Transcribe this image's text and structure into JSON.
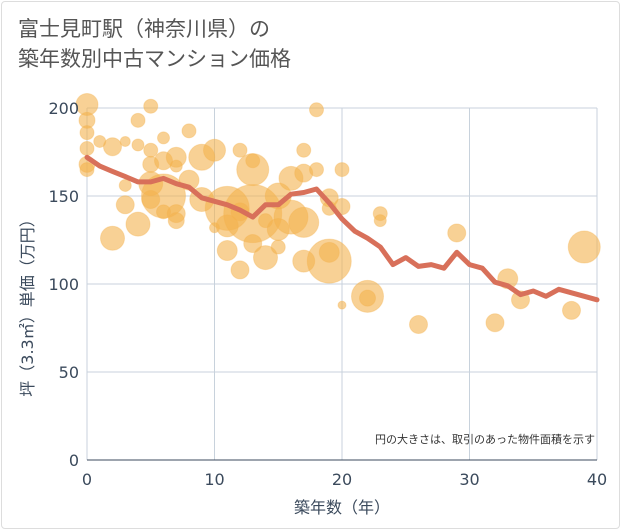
{
  "title": {
    "line1": "富士見町駅（神奈川県）の",
    "line2": "築年数別中古マンション価格"
  },
  "colors": {
    "bubble": "#f3b34e",
    "line": "#d8705a",
    "grid": "#c8d2dc",
    "axis": "#3b4a5c"
  },
  "chart_data": {
    "type": "scatter",
    "title": "富士見町駅（神奈川県）の築年数別中古マンション価格",
    "xlabel": "築年数（年）",
    "ylabel": "坪（3.3㎡）単価（万円）",
    "xlim": [
      0,
      40
    ],
    "ylim": [
      0,
      200
    ],
    "xticks": [
      0,
      10,
      20,
      30,
      40
    ],
    "yticks": [
      0,
      50,
      100,
      150,
      200
    ],
    "grid": true,
    "annotation": "円の大きさは、取引のあった物件面積を示す",
    "series": [
      {
        "type": "bubble",
        "points": [
          {
            "x": 0,
            "y": 202,
            "r": 11
          },
          {
            "x": 0,
            "y": 193,
            "r": 8
          },
          {
            "x": 0,
            "y": 186,
            "r": 7
          },
          {
            "x": 0,
            "y": 177,
            "r": 7
          },
          {
            "x": 0,
            "y": 168,
            "r": 8
          },
          {
            "x": 0,
            "y": 165,
            "r": 7
          },
          {
            "x": 1,
            "y": 181,
            "r": 6
          },
          {
            "x": 2,
            "y": 178,
            "r": 9
          },
          {
            "x": 2,
            "y": 126,
            "r": 12
          },
          {
            "x": 3,
            "y": 181,
            "r": 5
          },
          {
            "x": 3,
            "y": 156,
            "r": 6
          },
          {
            "x": 3,
            "y": 145,
            "r": 9
          },
          {
            "x": 4,
            "y": 193,
            "r": 7
          },
          {
            "x": 4,
            "y": 179,
            "r": 6
          },
          {
            "x": 4,
            "y": 134,
            "r": 12
          },
          {
            "x": 5,
            "y": 201,
            "r": 7
          },
          {
            "x": 5,
            "y": 176,
            "r": 7
          },
          {
            "x": 5,
            "y": 168,
            "r": 8
          },
          {
            "x": 5,
            "y": 157,
            "r": 12
          },
          {
            "x": 5,
            "y": 148,
            "r": 9
          },
          {
            "x": 6,
            "y": 183,
            "r": 6
          },
          {
            "x": 6,
            "y": 170,
            "r": 9
          },
          {
            "x": 6,
            "y": 150,
            "r": 22
          },
          {
            "x": 6,
            "y": 141,
            "r": 7
          },
          {
            "x": 7,
            "y": 172,
            "r": 10
          },
          {
            "x": 7,
            "y": 167,
            "r": 6
          },
          {
            "x": 7,
            "y": 140,
            "r": 9
          },
          {
            "x": 7,
            "y": 136,
            "r": 8
          },
          {
            "x": 8,
            "y": 187,
            "r": 7
          },
          {
            "x": 8,
            "y": 159,
            "r": 10
          },
          {
            "x": 9,
            "y": 172,
            "r": 13
          },
          {
            "x": 9,
            "y": 148,
            "r": 12
          },
          {
            "x": 10,
            "y": 176,
            "r": 11
          },
          {
            "x": 10,
            "y": 132,
            "r": 5
          },
          {
            "x": 11,
            "y": 143,
            "r": 22
          },
          {
            "x": 11,
            "y": 133,
            "r": 11
          },
          {
            "x": 11,
            "y": 119,
            "r": 10
          },
          {
            "x": 12,
            "y": 176,
            "r": 7
          },
          {
            "x": 12,
            "y": 141,
            "r": 9
          },
          {
            "x": 12,
            "y": 108,
            "r": 9
          },
          {
            "x": 13,
            "y": 170,
            "r": 7
          },
          {
            "x": 13,
            "y": 165,
            "r": 16
          },
          {
            "x": 13,
            "y": 140,
            "r": 29
          },
          {
            "x": 13,
            "y": 123,
            "r": 9
          },
          {
            "x": 14,
            "y": 136,
            "r": 7
          },
          {
            "x": 14,
            "y": 115,
            "r": 12
          },
          {
            "x": 15,
            "y": 150,
            "r": 13
          },
          {
            "x": 15,
            "y": 131,
            "r": 11
          },
          {
            "x": 15,
            "y": 121,
            "r": 7
          },
          {
            "x": 16,
            "y": 160,
            "r": 12
          },
          {
            "x": 16,
            "y": 138,
            "r": 17
          },
          {
            "x": 17,
            "y": 176,
            "r": 7
          },
          {
            "x": 17,
            "y": 163,
            "r": 9
          },
          {
            "x": 17,
            "y": 135,
            "r": 15
          },
          {
            "x": 17,
            "y": 113,
            "r": 11
          },
          {
            "x": 18,
            "y": 199,
            "r": 7
          },
          {
            "x": 18,
            "y": 165,
            "r": 7
          },
          {
            "x": 19,
            "y": 149,
            "r": 9
          },
          {
            "x": 19,
            "y": 143,
            "r": 7
          },
          {
            "x": 19,
            "y": 118,
            "r": 10
          },
          {
            "x": 19,
            "y": 113,
            "r": 22
          },
          {
            "x": 20,
            "y": 165,
            "r": 7
          },
          {
            "x": 20,
            "y": 144,
            "r": 8
          },
          {
            "x": 20,
            "y": 88,
            "r": 4
          },
          {
            "x": 22,
            "y": 93,
            "r": 16
          },
          {
            "x": 22,
            "y": 92,
            "r": 8
          },
          {
            "x": 23,
            "y": 140,
            "r": 7
          },
          {
            "x": 23,
            "y": 136,
            "r": 6
          },
          {
            "x": 26,
            "y": 77,
            "r": 9
          },
          {
            "x": 29,
            "y": 129,
            "r": 9
          },
          {
            "x": 32,
            "y": 78,
            "r": 9
          },
          {
            "x": 33,
            "y": 103,
            "r": 10
          },
          {
            "x": 34,
            "y": 91,
            "r": 9
          },
          {
            "x": 38,
            "y": 85,
            "r": 9
          },
          {
            "x": 39,
            "y": 121,
            "r": 16
          }
        ]
      },
      {
        "type": "line",
        "x": [
          0,
          1,
          2,
          3,
          4,
          5,
          6,
          7,
          8,
          9,
          10,
          11,
          12,
          13,
          14,
          15,
          16,
          17,
          18,
          19,
          20,
          21,
          22,
          23,
          24,
          25,
          26,
          27,
          28,
          29,
          30,
          31,
          32,
          33,
          34,
          35,
          36,
          37,
          38,
          39,
          40
        ],
        "y": [
          172,
          167,
          164,
          161,
          158,
          158,
          160,
          157,
          155,
          149,
          147,
          145,
          142,
          138,
          145,
          145,
          151,
          152,
          154,
          146,
          137,
          130,
          126,
          121,
          111,
          115,
          110,
          111,
          109,
          118,
          111,
          109,
          101,
          99,
          94,
          96,
          93,
          97,
          95,
          93,
          91
        ]
      }
    ]
  }
}
